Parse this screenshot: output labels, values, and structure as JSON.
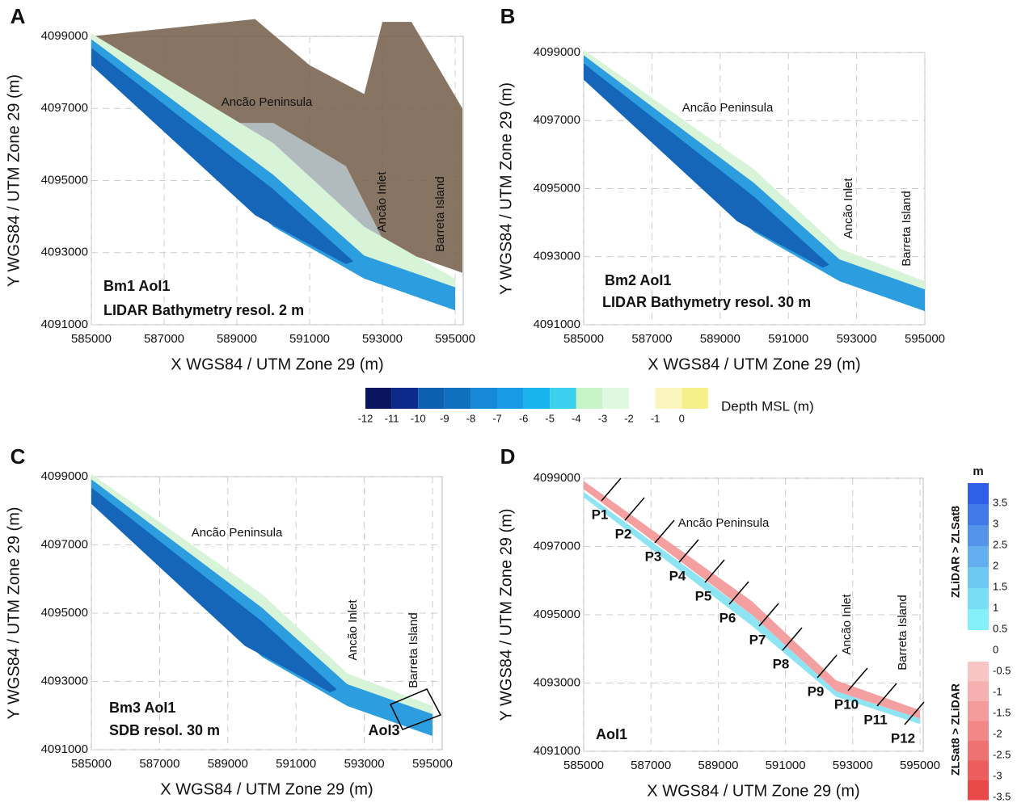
{
  "panels": [
    {
      "letter": "A",
      "xlabel": "X WGS84 / UTM Zone 29 (m)",
      "ylabel": "Y WGS84 / UTM Zone 29 (m)",
      "xticks": [
        585000,
        587000,
        589000,
        591000,
        593000,
        595000
      ],
      "yticks": [
        4091000,
        4093000,
        4095000,
        4097000,
        4099000
      ],
      "annotations": [
        "Ancão Peninsula",
        "Ancão Inlet",
        "Barreta Island"
      ],
      "caption": [
        "Bm1 AoI1",
        "LIDAR Bathymetry resol. 2 m"
      ]
    },
    {
      "letter": "B",
      "xlabel": "X WGS84 / UTM Zone 29 (m)",
      "ylabel": "Y WGS84 / UTM Zone 29 (m)",
      "xticks": [
        585000,
        587000,
        589000,
        591000,
        593000,
        595000
      ],
      "yticks": [
        4091000,
        4093000,
        4095000,
        4097000,
        4099000
      ],
      "annotations": [
        "Ancão Peninsula",
        "Ancão Inlet",
        "Barreta Island"
      ],
      "caption": [
        "Bm2 AoI1",
        "LIDAR Bathymetry resol. 30 m"
      ]
    },
    {
      "letter": "C",
      "xlabel": "X WGS84 / UTM Zone 29 (m)",
      "ylabel": "Y WGS84 / UTM Zone 29 (m)",
      "xticks": [
        585000,
        587000,
        589000,
        591000,
        593000,
        595000
      ],
      "yticks": [
        4091000,
        4093000,
        4095000,
        4097000,
        4099000
      ],
      "annotations": [
        "Ancão Peninsula",
        "Ancão Inlet",
        "Barreta Island",
        "AoI3"
      ],
      "caption": [
        "Bm3 AoI1",
        "SDB resol. 30 m"
      ]
    },
    {
      "letter": "D",
      "xlabel": "X WGS84 / UTM Zone 29 (m)",
      "ylabel": "Y WGS84 / UTM Zone 29 (m)",
      "xticks": [
        585000,
        587000,
        589000,
        591000,
        593000,
        595000
      ],
      "yticks": [
        4091000,
        4093000,
        4095000,
        4097000,
        4099000
      ],
      "annotations": [
        "Ancão Peninsula",
        "Ancão Inlet",
        "Barreta Island"
      ],
      "caption": [
        "AoI1"
      ],
      "profiles": [
        "P1",
        "P2",
        "P3",
        "P4",
        "P5",
        "P6",
        "P7",
        "P8",
        "P9",
        "P10",
        "P11",
        "P12"
      ]
    }
  ],
  "depth_legend": {
    "title": "Depth MSL (m)",
    "ticks": [
      -12,
      -11,
      -10,
      -9,
      -8,
      -7,
      -6,
      -5,
      -4,
      -3,
      -2,
      -1,
      0
    ],
    "colors": [
      "#0a1560",
      "#0d2a8a",
      "#0d5fb0",
      "#1070c0",
      "#1589d6",
      "#1a9be6",
      "#18b4f0",
      "#3dd0ee",
      "#c8f5c8",
      "#e0f8e0",
      "#ffffff",
      "#fbf6c0",
      "#f7f08a"
    ]
  },
  "difference_legend": {
    "unit": "m",
    "upper_label": "ZLiDAR > ZLSat8",
    "lower_label": "ZLSat8 > ZLiDAR",
    "ticks": [
      3.5,
      3,
      2.5,
      2,
      1.5,
      1,
      0.5,
      0,
      -0.5,
      -1,
      -1.5,
      -2,
      -2.5,
      -3,
      -3.5
    ],
    "colors": [
      "#2f5fe8",
      "#3f7ae8",
      "#5394ea",
      "#63aeee",
      "#6fc8f2",
      "#79def5",
      "#86f0f8",
      "#f9c4c4",
      "#f7b0b0",
      "#f49b9b",
      "#f28787",
      "#ef7272",
      "#ec5e5e",
      "#e84848"
    ]
  }
}
